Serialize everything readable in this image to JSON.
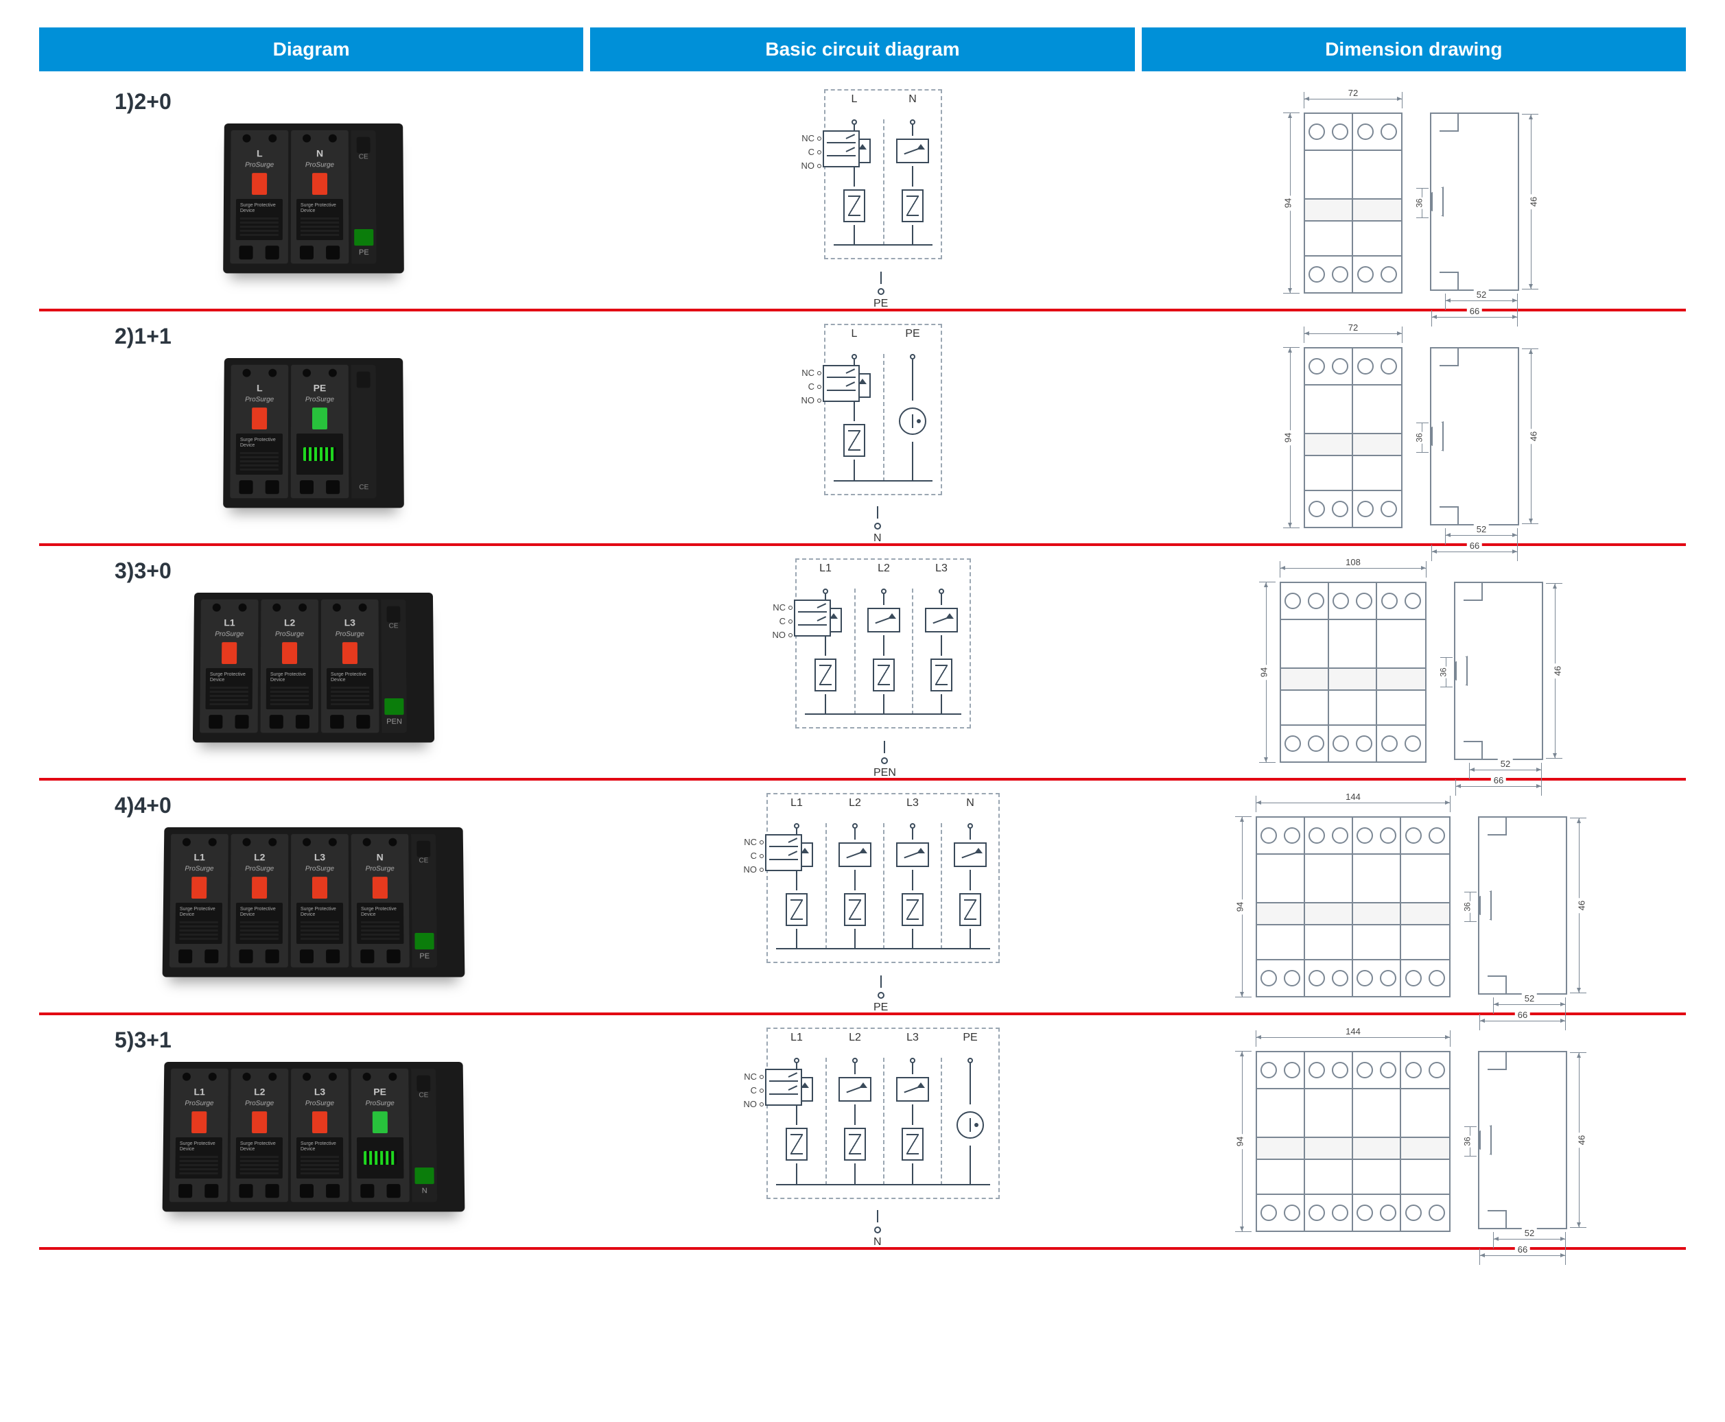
{
  "headers": {
    "c1": "Diagram",
    "c2": "Basic circuit diagram",
    "c3": "Dimension drawing"
  },
  "colors": {
    "header_bg": "#0090d8",
    "header_text": "#ffffff",
    "divider": "#e20613",
    "device_body": "#1a1a1a",
    "module_body": "#2b2b2b",
    "window_red": "#e63a1e",
    "window_green": "#28c23c",
    "npe_green": "#1fd81f",
    "line": "#3a4a5a",
    "dim_line": "#7b8794"
  },
  "relay_labels": {
    "nc": "NC",
    "c": "C",
    "no": "NO"
  },
  "brand": "ProSurge",
  "plate_title": "Surge Protective Device",
  "dimensions_common": {
    "height": "94",
    "side_overall_h": "46",
    "side_clip_h": "36",
    "side_depth_inner": "52",
    "side_depth_outer": "66"
  },
  "rows": [
    {
      "id": "r1",
      "label": "1)2+0",
      "modules": [
        {
          "phase": "L",
          "window_color": "#e63a1e",
          "type": "mov"
        },
        {
          "phase": "N",
          "window_color": "#e63a1e",
          "type": "mov"
        }
      ],
      "side_pe": "PE",
      "circuit": {
        "top_labels": [
          "L",
          "N"
        ],
        "poles": [
          "mov",
          "mov"
        ],
        "bottom_label": "PE"
      },
      "dimension": {
        "width": "72",
        "modules": 2
      }
    },
    {
      "id": "r2",
      "label": "2)1+1",
      "modules": [
        {
          "phase": "L",
          "window_color": "#e63a1e",
          "type": "mov"
        },
        {
          "phase": "PE",
          "window_color": "#28c23c",
          "type": "npe"
        }
      ],
      "side_pe": "",
      "circuit": {
        "top_labels": [
          "L",
          "PE"
        ],
        "poles": [
          "mov",
          "gdt"
        ],
        "bottom_label": "N"
      },
      "dimension": {
        "width": "72",
        "modules": 2
      }
    },
    {
      "id": "r3",
      "label": "3)3+0",
      "modules": [
        {
          "phase": "L1",
          "window_color": "#e63a1e",
          "type": "mov"
        },
        {
          "phase": "L2",
          "window_color": "#e63a1e",
          "type": "mov"
        },
        {
          "phase": "L3",
          "window_color": "#e63a1e",
          "type": "mov"
        }
      ],
      "side_pe": "PEN",
      "circuit": {
        "top_labels": [
          "L1",
          "L2",
          "L3"
        ],
        "poles": [
          "mov",
          "mov",
          "mov"
        ],
        "bottom_label": "PEN"
      },
      "dimension": {
        "width": "108",
        "modules": 3
      }
    },
    {
      "id": "r4",
      "label": "4)4+0",
      "modules": [
        {
          "phase": "L1",
          "window_color": "#e63a1e",
          "type": "mov"
        },
        {
          "phase": "L2",
          "window_color": "#e63a1e",
          "type": "mov"
        },
        {
          "phase": "L3",
          "window_color": "#e63a1e",
          "type": "mov"
        },
        {
          "phase": "N",
          "window_color": "#e63a1e",
          "type": "mov"
        }
      ],
      "side_pe": "PE",
      "circuit": {
        "top_labels": [
          "L1",
          "L2",
          "L3",
          "N"
        ],
        "poles": [
          "mov",
          "mov",
          "mov",
          "mov"
        ],
        "bottom_label": "PE"
      },
      "dimension": {
        "width": "144",
        "modules": 4
      }
    },
    {
      "id": "r5",
      "label": "5)3+1",
      "modules": [
        {
          "phase": "L1",
          "window_color": "#e63a1e",
          "type": "mov"
        },
        {
          "phase": "L2",
          "window_color": "#e63a1e",
          "type": "mov"
        },
        {
          "phase": "L3",
          "window_color": "#e63a1e",
          "type": "mov"
        },
        {
          "phase": "PE",
          "window_color": "#28c23c",
          "type": "npe"
        }
      ],
      "side_pe": "N",
      "circuit": {
        "top_labels": [
          "L1",
          "L2",
          "L3",
          "PE"
        ],
        "poles": [
          "mov",
          "mov",
          "mov",
          "gdt"
        ],
        "bottom_label": "N"
      },
      "dimension": {
        "width": "144",
        "modules": 4
      }
    }
  ]
}
